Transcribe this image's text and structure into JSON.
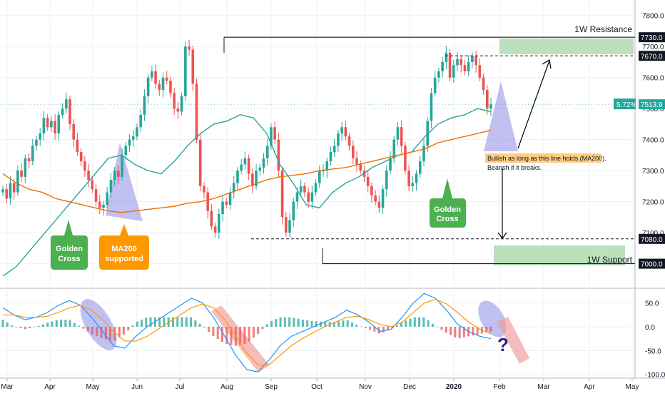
{
  "chart_data": [
    {
      "type": "candlestick",
      "title": "",
      "instrument_label": "",
      "x_tick_labels": [
        "Mar",
        "Apr",
        "May",
        "Jun",
        "Jul",
        "Aug",
        "Sep",
        "Oct",
        "Nov",
        "Dec",
        "2020",
        "Feb",
        "Mar",
        "Apr",
        "May"
      ],
      "y_tick_labels": [
        "7800.0",
        "7700.0",
        "7600.0",
        "7500.0",
        "7400.0",
        "7300.0",
        "7200.0",
        "7100.0",
        "7000.0"
      ],
      "ylim": [
        6930,
        7850
      ],
      "price_tags": [
        {
          "label": "7730.0",
          "style": "dark"
        },
        {
          "label": "7670.0",
          "style": "dark"
        },
        {
          "label": "7513.9",
          "style": "green",
          "change": "5.72%"
        },
        {
          "label": "7080.0",
          "style": "dark"
        },
        {
          "label": "7000.0",
          "style": "dark"
        }
      ],
      "levels": [
        {
          "name": "1W Resistance",
          "value": 7730
        },
        {
          "name": "1W Support",
          "value": 7000
        }
      ],
      "dashed_levels": [
        7670,
        7080
      ],
      "annotations": [
        {
          "text_lines": [
            "Golden",
            "Cross"
          ],
          "color": "#4caf50"
        },
        {
          "text_lines": [
            "MA200",
            "supported"
          ],
          "color": "#ff9800"
        },
        {
          "text_lines": [
            "Golden",
            "Cross"
          ],
          "color": "#4caf50"
        },
        {
          "text_lines": [
            "Bullish as long as this line holds (MA200).",
            "Bearish if it breaks."
          ],
          "color": "#ffcc80"
        },
        {
          "text_lines": [
            "?"
          ],
          "color": "#311b92"
        }
      ],
      "series": [
        {
          "type": "line",
          "color": "#26a69a",
          "values": [
            6960,
            6990,
            7040,
            7090,
            7140,
            7190,
            7240,
            7290,
            7340,
            7350,
            7320,
            7300,
            7290,
            7330,
            7380,
            7420,
            7450,
            7460,
            7480,
            7470,
            7420,
            7320,
            7260,
            7190,
            7180,
            7230,
            7260,
            7280,
            7310,
            7330,
            7350,
            7360,
            7410,
            7450,
            7470,
            7480,
            7500,
            7490
          ]
        },
        {
          "type": "line",
          "color": "#ef6c00",
          "values": [
            7290,
            7260,
            7240,
            7230,
            7210,
            7200,
            7190,
            7180,
            7170,
            7165,
            7170,
            7175,
            7180,
            7185,
            7195,
            7200,
            7210,
            7225,
            7240,
            7255,
            7270,
            7280,
            7285,
            7290,
            7300,
            7305,
            7310,
            7320,
            7330,
            7340,
            7350,
            7360,
            7370,
            7390,
            7400,
            7410,
            7420,
            7430
          ]
        }
      ],
      "candles": [
        7240,
        7210,
        7260,
        7230,
        7300,
        7280,
        7340,
        7330,
        7380,
        7400,
        7420,
        7470,
        7440,
        7460,
        7420,
        7480,
        7500,
        7530,
        7450,
        7400,
        7360,
        7330,
        7300,
        7270,
        7240,
        7200,
        7180,
        7190,
        7230,
        7270,
        7300,
        7280,
        7350,
        7380,
        7400,
        7410,
        7440,
        7480,
        7540,
        7600,
        7620,
        7580,
        7560,
        7600,
        7590,
        7550,
        7500,
        7490,
        7540,
        7700,
        7690,
        7580,
        7400,
        7250,
        7230,
        7170,
        7120,
        7100,
        7160,
        7200,
        7190,
        7230,
        7260,
        7300,
        7320,
        7340,
        7290,
        7250,
        7300,
        7310,
        7340,
        7380,
        7440,
        7400,
        7300,
        7150,
        7100,
        7140,
        7200,
        7230,
        7250,
        7230,
        7200,
        7230,
        7260,
        7300,
        7300,
        7330,
        7360,
        7380,
        7420,
        7440,
        7410,
        7380,
        7340,
        7320,
        7300,
        7280,
        7250,
        7220,
        7200,
        7180,
        7240,
        7300,
        7340,
        7400,
        7440,
        7380,
        7300,
        7250,
        7260,
        7290,
        7330,
        7380,
        7460,
        7550,
        7600,
        7620,
        7650,
        7680,
        7600,
        7640,
        7660,
        7640,
        7620,
        7650,
        7670,
        7640,
        7600,
        7560,
        7500,
        7513.9
      ]
    },
    {
      "type": "macd",
      "y_tick_labels": [
        "50.0",
        "0.0",
        "-50.0",
        "-100.0"
      ],
      "ylim": [
        -105,
        75
      ],
      "series": [
        {
          "type": "line",
          "color": "#2196f3",
          "values": [
            40,
            25,
            15,
            20,
            30,
            45,
            55,
            45,
            20,
            -10,
            -40,
            -45,
            -20,
            0,
            15,
            30,
            45,
            60,
            50,
            20,
            -20,
            -60,
            -90,
            -95,
            -70,
            -40,
            -20,
            -10,
            0,
            10,
            20,
            35,
            25,
            10,
            -10,
            -5,
            20,
            50,
            70,
            60,
            35,
            5,
            -10,
            -20,
            -25
          ]
        },
        {
          "type": "line",
          "color": "#ff9800",
          "values": [
            25,
            25,
            20,
            20,
            22,
            30,
            40,
            45,
            35,
            15,
            -10,
            -30,
            -30,
            -20,
            -5,
            10,
            25,
            40,
            48,
            40,
            15,
            -20,
            -55,
            -80,
            -80,
            -60,
            -40,
            -25,
            -12,
            0,
            10,
            20,
            22,
            15,
            5,
            0,
            10,
            30,
            50,
            58,
            48,
            30,
            10,
            -5,
            -15
          ]
        }
      ],
      "annotations": [
        {
          "text": "?"
        }
      ]
    }
  ]
}
